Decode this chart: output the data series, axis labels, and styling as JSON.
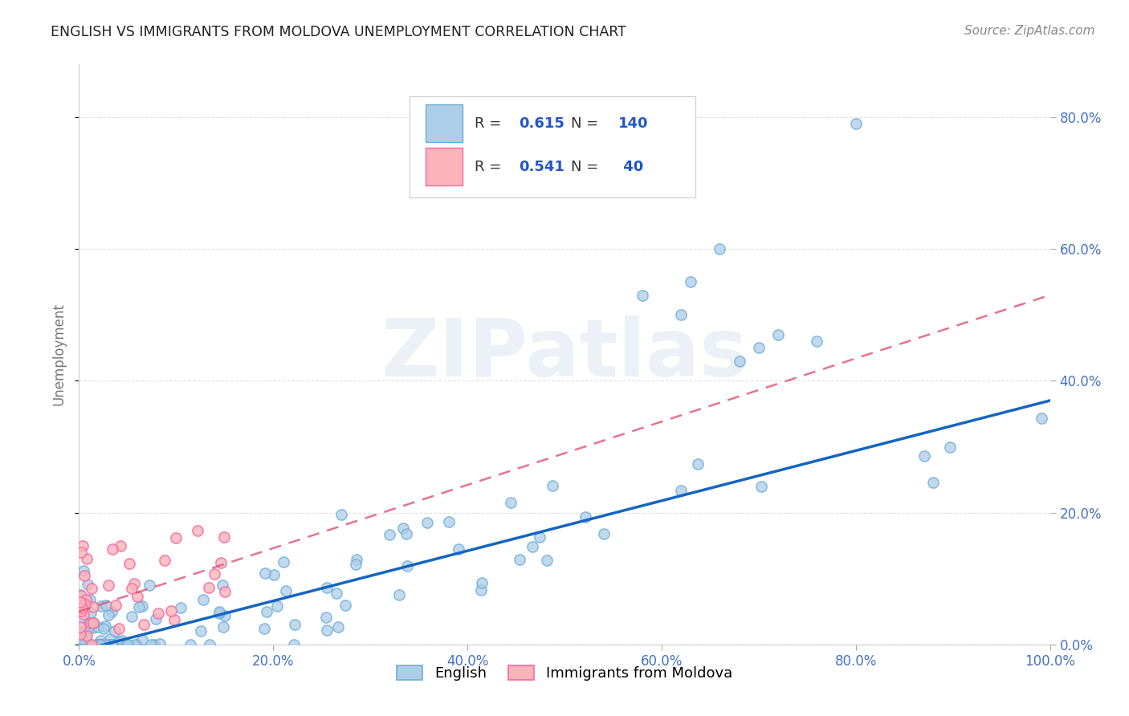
{
  "title": "ENGLISH VS IMMIGRANTS FROM MOLDOVA UNEMPLOYMENT CORRELATION CHART",
  "source": "Source: ZipAtlas.com",
  "ylabel": "Unemployment",
  "xlim": [
    0.0,
    1.0
  ],
  "ylim": [
    0.0,
    0.88
  ],
  "xticks": [
    0.0,
    0.2,
    0.4,
    0.6,
    0.8,
    1.0
  ],
  "xticklabels": [
    "0.0%",
    "20.0%",
    "40.0%",
    "60.0%",
    "80.0%",
    "100.0%"
  ],
  "yticks": [
    0.0,
    0.2,
    0.4,
    0.6,
    0.8
  ],
  "yticklabels": [
    "0.0%",
    "20.0%",
    "40.0%",
    "60.0%",
    "80.0%"
  ],
  "english_face": "#aecde8",
  "english_edge": "#6baed6",
  "moldova_face": "#fbb4b9",
  "moldova_edge": "#f768a1",
  "trend_english_color": "#1565c0",
  "trend_moldova_color": "#e05070",
  "grid_color": "#dddddd",
  "background_color": "#ffffff",
  "R_english": "0.615",
  "N_english": "140",
  "R_moldova": "0.541",
  "N_moldova": " 40",
  "legend_labels": [
    "English",
    "Immigrants from Moldova"
  ],
  "watermark": "ZIPatlas",
  "title_color": "#222222",
  "tick_color": "#4472c4",
  "source_color": "#888888",
  "ylabel_color": "#777777",
  "legend_box_color": "#6baed6",
  "legend_box_color2": "#fbb4b9",
  "slope_eng": 0.38,
  "intercept_eng": -0.01,
  "slope_mol": 0.48,
  "intercept_mol": 0.05
}
